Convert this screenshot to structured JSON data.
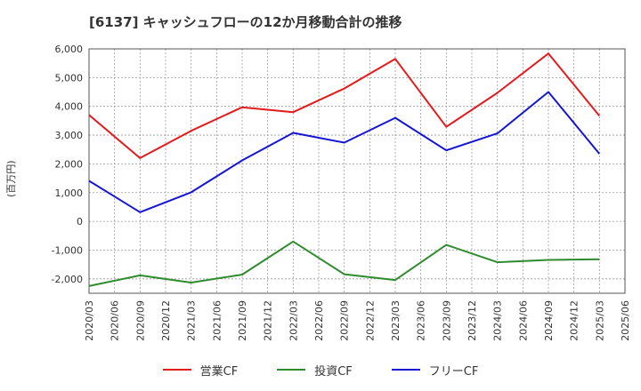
{
  "chart_data": {
    "type": "line",
    "title": "[6137]  キャッシュフローの12か月移動合計の推移",
    "ylabel": "(百万円)",
    "x": [
      "2020/03",
      "2020/06",
      "2020/09",
      "2020/12",
      "2021/03",
      "2021/06",
      "2021/09",
      "2021/12",
      "2022/03",
      "2022/06",
      "2022/09",
      "2022/12",
      "2023/03",
      "2023/06",
      "2023/09",
      "2023/12",
      "2024/03",
      "2024/06",
      "2024/09",
      "2024/12",
      "2025/03",
      "2025/06"
    ],
    "ylim": [
      -2500,
      6000
    ],
    "yticks": [
      6000,
      5000,
      4000,
      3000,
      2000,
      1000,
      0,
      -1000,
      -2000
    ],
    "ytick_labels": [
      "6,000",
      "5,000",
      "4,000",
      "3,000",
      "2,000",
      "1,000",
      "0",
      "-1,000",
      "-2,000"
    ],
    "grid": true,
    "legend_position": "bottom-center",
    "series": [
      {
        "name": "営業CF",
        "color": "#e41a1c",
        "values": [
          3700,
          null,
          2200,
          null,
          3150,
          null,
          3970,
          null,
          3800,
          null,
          4620,
          null,
          5650,
          null,
          3290,
          null,
          4470,
          null,
          5840,
          null,
          3670,
          null
        ]
      },
      {
        "name": "投資CF",
        "color": "#2e8b2e",
        "values": [
          -2250,
          null,
          -1880,
          null,
          -2130,
          null,
          -1850,
          null,
          -700,
          null,
          -1840,
          null,
          -2040,
          null,
          -820,
          null,
          -1420,
          null,
          -1340,
          null,
          -1320,
          null
        ]
      },
      {
        "name": "フリーCF",
        "color": "#1515d4",
        "values": [
          1410,
          null,
          320,
          null,
          1010,
          null,
          2120,
          null,
          3080,
          null,
          2740,
          null,
          3600,
          null,
          2470,
          null,
          3060,
          null,
          4500,
          null,
          2350,
          null
        ]
      }
    ]
  }
}
